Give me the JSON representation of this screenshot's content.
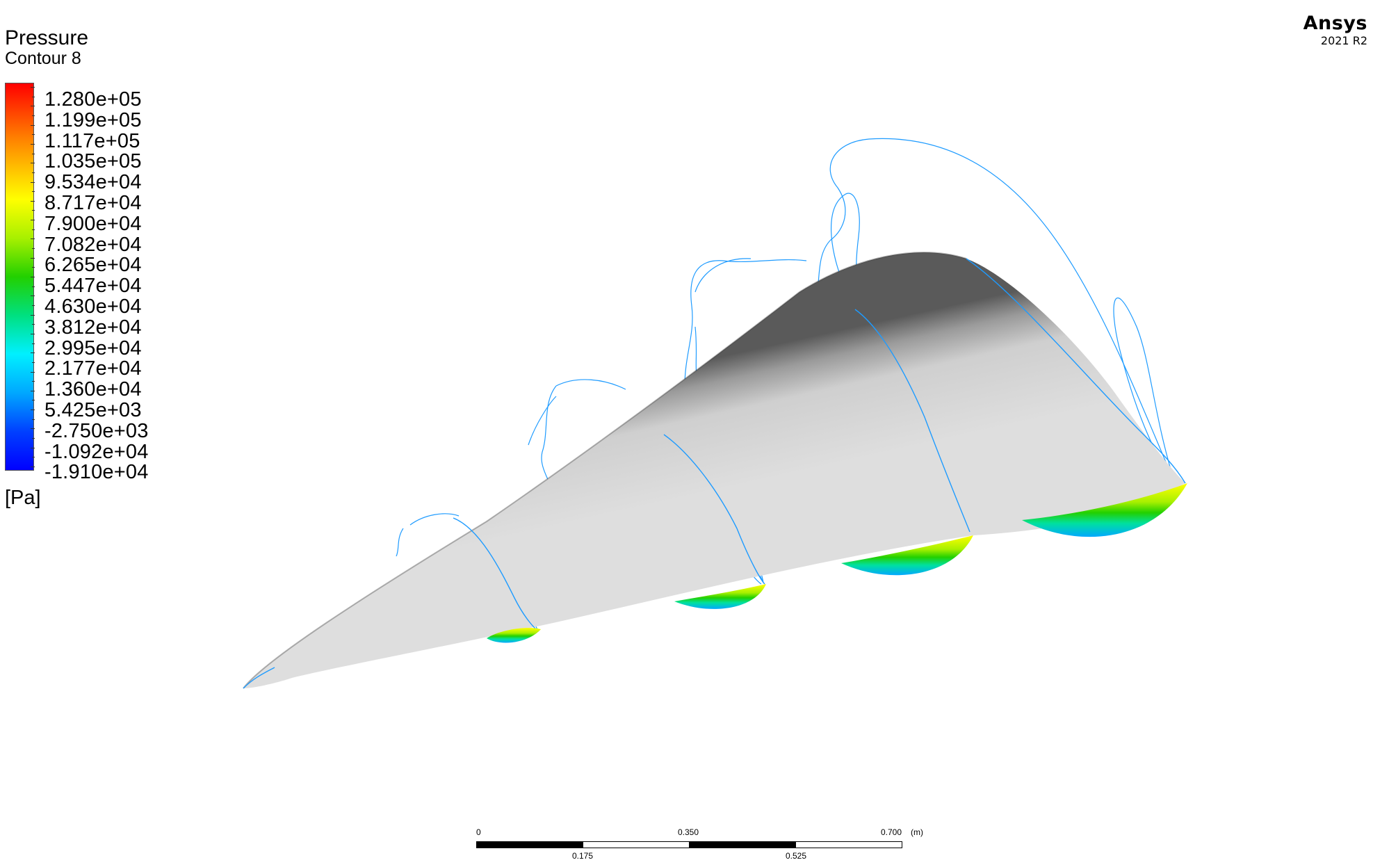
{
  "legend": {
    "title": "Pressure",
    "subtitle": "Contour 8",
    "unit": "[Pa]",
    "levels": [
      "1.280e+05",
      "1.199e+05",
      "1.117e+05",
      "1.035e+05",
      "9.534e+04",
      "8.717e+04",
      "7.900e+04",
      "7.082e+04",
      "6.265e+04",
      "5.447e+04",
      "4.630e+04",
      "3.812e+04",
      "2.995e+04",
      "2.177e+04",
      "1.360e+04",
      "5.425e+03",
      "-2.750e+03",
      "-1.092e+04",
      "-1.910e+04"
    ],
    "colormap": [
      "#ff0000",
      "#ff7f00",
      "#ffff00",
      "#22d000",
      "#00f0ff",
      "#0000ff"
    ]
  },
  "brand": {
    "name": "Ansys",
    "version": "2021 R2"
  },
  "scale_bar": {
    "labels_top": [
      "0",
      "0.350",
      "0.700"
    ],
    "labels_bottom": [
      "0.175",
      "0.525"
    ],
    "unit": "(m)"
  },
  "view": {
    "body_color": "#d9d9d9",
    "contour_line_color": "#1e9bff",
    "object": "cone-body-with-section-contours"
  }
}
